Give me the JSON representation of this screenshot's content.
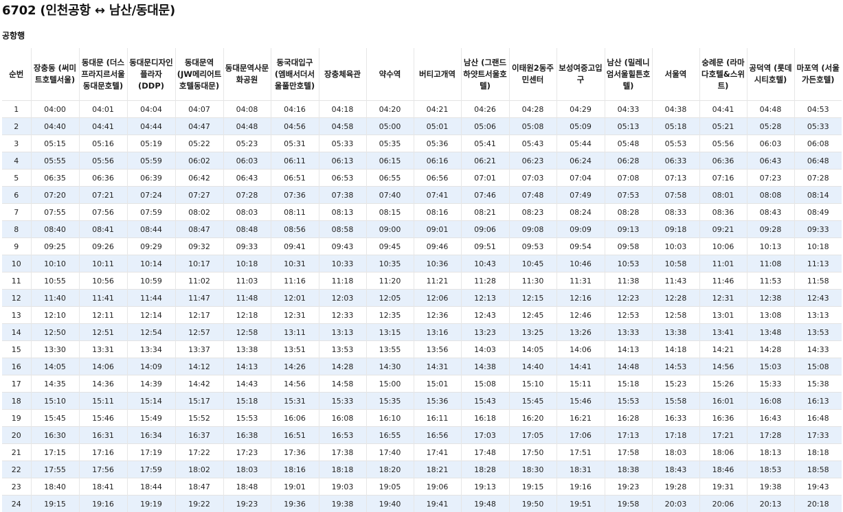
{
  "title": "6702 (인천공항 ↔ 남산/동대문)",
  "direction": "공항행",
  "table": {
    "columns": [
      "순번",
      "장충동 (써미트호텔서울)",
      "동대문 (더스프라지르서울동대문호텔)",
      "동대문디자인플라자 (DDP)",
      "동대문역 (JW메리어트호텔동대문)",
      "동대문역사문화공원",
      "동국대입구 (엠배서더서울풀만호텔)",
      "장충체육관",
      "약수역",
      "버티고개역",
      "남산 (그랜드하얏트서울호텔)",
      "이태원2동주민센터",
      "보성여중고입구",
      "남산 (밀레니엄서울힐튼호텔)",
      "서울역",
      "숭례문 (라마다호텔&스위트)",
      "공덕역 (롯데시티호텔)",
      "마포역 (서울가든호텔)"
    ],
    "rows": [
      [
        "1",
        "04:00",
        "04:01",
        "04:04",
        "04:07",
        "04:08",
        "04:16",
        "04:18",
        "04:20",
        "04:21",
        "04:26",
        "04:28",
        "04:29",
        "04:33",
        "04:38",
        "04:41",
        "04:48",
        "04:53"
      ],
      [
        "2",
        "04:40",
        "04:41",
        "04:44",
        "04:47",
        "04:48",
        "04:56",
        "04:58",
        "05:00",
        "05:01",
        "05:06",
        "05:08",
        "05:09",
        "05:13",
        "05:18",
        "05:21",
        "05:28",
        "05:33"
      ],
      [
        "3",
        "05:15",
        "05:16",
        "05:19",
        "05:22",
        "05:23",
        "05:31",
        "05:33",
        "05:35",
        "05:36",
        "05:41",
        "05:43",
        "05:44",
        "05:48",
        "05:53",
        "05:56",
        "06:03",
        "06:08"
      ],
      [
        "4",
        "05:55",
        "05:56",
        "05:59",
        "06:02",
        "06:03",
        "06:11",
        "06:13",
        "06:15",
        "06:16",
        "06:21",
        "06:23",
        "06:24",
        "06:28",
        "06:33",
        "06:36",
        "06:43",
        "06:48"
      ],
      [
        "5",
        "06:35",
        "06:36",
        "06:39",
        "06:42",
        "06:43",
        "06:51",
        "06:53",
        "06:55",
        "06:56",
        "07:01",
        "07:03",
        "07:04",
        "07:08",
        "07:13",
        "07:16",
        "07:23",
        "07:28"
      ],
      [
        "6",
        "07:20",
        "07:21",
        "07:24",
        "07:27",
        "07:28",
        "07:36",
        "07:38",
        "07:40",
        "07:41",
        "07:46",
        "07:48",
        "07:49",
        "07:53",
        "07:58",
        "08:01",
        "08:08",
        "08:14"
      ],
      [
        "7",
        "07:55",
        "07:56",
        "07:59",
        "08:02",
        "08:03",
        "08:11",
        "08:13",
        "08:15",
        "08:16",
        "08:21",
        "08:23",
        "08:24",
        "08:28",
        "08:33",
        "08:36",
        "08:43",
        "08:49"
      ],
      [
        "8",
        "08:40",
        "08:41",
        "08:44",
        "08:47",
        "08:48",
        "08:56",
        "08:58",
        "09:00",
        "09:01",
        "09:06",
        "09:08",
        "09:09",
        "09:13",
        "09:18",
        "09:21",
        "09:28",
        "09:33"
      ],
      [
        "9",
        "09:25",
        "09:26",
        "09:29",
        "09:32",
        "09:33",
        "09:41",
        "09:43",
        "09:45",
        "09:46",
        "09:51",
        "09:53",
        "09:54",
        "09:58",
        "10:03",
        "10:06",
        "10:13",
        "10:18"
      ],
      [
        "10",
        "10:10",
        "10:11",
        "10:14",
        "10:17",
        "10:18",
        "10:31",
        "10:33",
        "10:35",
        "10:36",
        "10:43",
        "10:45",
        "10:46",
        "10:53",
        "10:58",
        "11:01",
        "11:08",
        "11:13"
      ],
      [
        "11",
        "10:55",
        "10:56",
        "10:59",
        "11:02",
        "11:03",
        "11:16",
        "11:18",
        "11:20",
        "11:21",
        "11:28",
        "11:30",
        "11:31",
        "11:38",
        "11:43",
        "11:46",
        "11:53",
        "11:58"
      ],
      [
        "12",
        "11:40",
        "11:41",
        "11:44",
        "11:47",
        "11:48",
        "12:01",
        "12:03",
        "12:05",
        "12:06",
        "12:13",
        "12:15",
        "12:16",
        "12:23",
        "12:28",
        "12:31",
        "12:38",
        "12:43"
      ],
      [
        "13",
        "12:10",
        "12:11",
        "12:14",
        "12:17",
        "12:18",
        "12:31",
        "12:33",
        "12:35",
        "12:36",
        "12:43",
        "12:45",
        "12:46",
        "12:53",
        "12:58",
        "13:01",
        "13:08",
        "13:13"
      ],
      [
        "14",
        "12:50",
        "12:51",
        "12:54",
        "12:57",
        "12:58",
        "13:11",
        "13:13",
        "13:15",
        "13:16",
        "13:23",
        "13:25",
        "13:26",
        "13:33",
        "13:38",
        "13:41",
        "13:48",
        "13:53"
      ],
      [
        "15",
        "13:30",
        "13:31",
        "13:34",
        "13:37",
        "13:38",
        "13:51",
        "13:53",
        "13:55",
        "13:56",
        "14:03",
        "14:05",
        "14:06",
        "14:13",
        "14:18",
        "14:21",
        "14:28",
        "14:33"
      ],
      [
        "16",
        "14:05",
        "14:06",
        "14:09",
        "14:12",
        "14:13",
        "14:26",
        "14:28",
        "14:30",
        "14:31",
        "14:38",
        "14:40",
        "14:41",
        "14:48",
        "14:53",
        "14:56",
        "15:03",
        "15:08"
      ],
      [
        "17",
        "14:35",
        "14:36",
        "14:39",
        "14:42",
        "14:43",
        "14:56",
        "14:58",
        "15:00",
        "15:01",
        "15:08",
        "15:10",
        "15:11",
        "15:18",
        "15:23",
        "15:26",
        "15:33",
        "15:38"
      ],
      [
        "18",
        "15:10",
        "15:11",
        "15:14",
        "15:17",
        "15:18",
        "15:31",
        "15:33",
        "15:35",
        "15:36",
        "15:43",
        "15:45",
        "15:46",
        "15:53",
        "15:58",
        "16:01",
        "16:08",
        "16:13"
      ],
      [
        "19",
        "15:45",
        "15:46",
        "15:49",
        "15:52",
        "15:53",
        "16:06",
        "16:08",
        "16:10",
        "16:11",
        "16:18",
        "16:20",
        "16:21",
        "16:28",
        "16:33",
        "16:36",
        "16:43",
        "16:48"
      ],
      [
        "20",
        "16:30",
        "16:31",
        "16:34",
        "16:37",
        "16:38",
        "16:51",
        "16:53",
        "16:55",
        "16:56",
        "17:03",
        "17:05",
        "17:06",
        "17:13",
        "17:18",
        "17:21",
        "17:28",
        "17:33"
      ],
      [
        "21",
        "17:15",
        "17:16",
        "17:19",
        "17:22",
        "17:23",
        "17:36",
        "17:38",
        "17:40",
        "17:41",
        "17:48",
        "17:50",
        "17:51",
        "17:58",
        "18:03",
        "18:06",
        "18:13",
        "18:18"
      ],
      [
        "22",
        "17:55",
        "17:56",
        "17:59",
        "18:02",
        "18:03",
        "18:16",
        "18:18",
        "18:20",
        "18:21",
        "18:28",
        "18:30",
        "18:31",
        "18:38",
        "18:43",
        "18:46",
        "18:53",
        "18:58"
      ],
      [
        "23",
        "18:40",
        "18:41",
        "18:44",
        "18:47",
        "18:48",
        "19:01",
        "19:03",
        "19:05",
        "19:06",
        "19:13",
        "19:15",
        "19:16",
        "19:23",
        "19:28",
        "19:31",
        "19:38",
        "19:43"
      ],
      [
        "24",
        "19:15",
        "19:16",
        "19:19",
        "19:22",
        "19:23",
        "19:36",
        "19:38",
        "19:40",
        "19:41",
        "19:48",
        "19:50",
        "19:51",
        "19:58",
        "20:03",
        "20:06",
        "20:13",
        "20:18"
      ]
    ]
  }
}
